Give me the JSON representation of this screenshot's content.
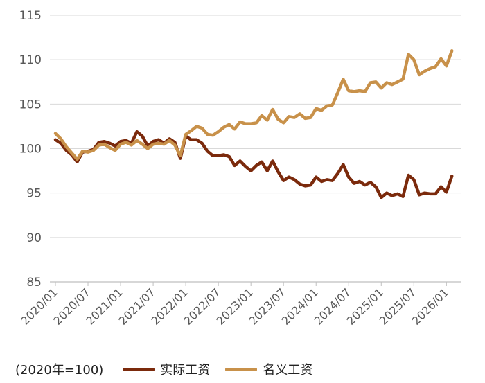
{
  "chart_data": {
    "type": "line",
    "ylim": [
      85,
      115
    ],
    "yticks": [
      85,
      90,
      95,
      100,
      105,
      110,
      115
    ],
    "x_start": "2020/01",
    "x": [
      "2020/01",
      "2020/02",
      "2020/03",
      "2020/04",
      "2020/05",
      "2020/06",
      "2020/07",
      "2020/08",
      "2020/09",
      "2020/10",
      "2020/11",
      "2020/12",
      "2021/01",
      "2021/02",
      "2021/03",
      "2021/04",
      "2021/05",
      "2021/06",
      "2021/07",
      "2021/08",
      "2021/09",
      "2021/10",
      "2021/11",
      "2021/12",
      "2022/01",
      "2022/02",
      "2022/03",
      "2022/04",
      "2022/05",
      "2022/06",
      "2022/07",
      "2022/08",
      "2022/09",
      "2022/10",
      "2022/11",
      "2022/12",
      "2023/01",
      "2023/02",
      "2023/03",
      "2023/04",
      "2023/05",
      "2023/06",
      "2023/07",
      "2023/08",
      "2023/09",
      "2023/10",
      "2023/11",
      "2023/12",
      "2024/01",
      "2024/02",
      "2024/03",
      "2024/04",
      "2024/05",
      "2024/06",
      "2024/07",
      "2024/08",
      "2024/09",
      "2024/10",
      "2024/11",
      "2024/12",
      "2025/01",
      "2025/02",
      "2025/03",
      "2025/04",
      "2025/05",
      "2025/06",
      "2025/07",
      "2025/08",
      "2025/09",
      "2025/10",
      "2025/11",
      "2025/12",
      "2026/01",
      "2026/02",
      "2026/03"
    ],
    "xticks": [
      "2020/01",
      "2020/07",
      "2021/01",
      "2021/07",
      "2022/01",
      "2022/07",
      "2023/01",
      "2023/07",
      "2024/01",
      "2024/07",
      "2025/01",
      "2025/07",
      "2026/01"
    ],
    "series": [
      {
        "name": "实际工资",
        "color": "#7B2A0C",
        "values": [
          101.0,
          100.6,
          99.8,
          99.3,
          98.5,
          99.6,
          99.7,
          99.9,
          100.7,
          100.8,
          100.6,
          100.3,
          100.8,
          100.9,
          100.6,
          101.9,
          101.4,
          100.3,
          100.8,
          101.0,
          100.6,
          101.1,
          100.7,
          98.9,
          101.4,
          101.0,
          101.0,
          100.6,
          99.7,
          99.2,
          99.2,
          99.3,
          99.1,
          98.1,
          98.6,
          98.0,
          97.5,
          98.1,
          98.5,
          97.5,
          98.6,
          97.4,
          96.4,
          96.8,
          96.5,
          96.0,
          95.8,
          95.9,
          96.8,
          96.3,
          96.5,
          96.4,
          97.2,
          98.2,
          96.8,
          96.1,
          96.3,
          95.9,
          96.2,
          95.7,
          94.5,
          95.0,
          94.7,
          94.9,
          94.6,
          97.0,
          96.5,
          94.8,
          95.0,
          94.9,
          94.9,
          95.7,
          95.1,
          96.9,
          null
        ]
      },
      {
        "name": "名义工资",
        "color": "#C8914A",
        "values": [
          101.7,
          101.1,
          100.2,
          99.5,
          98.8,
          99.7,
          99.6,
          99.8,
          100.4,
          100.5,
          100.1,
          99.8,
          100.5,
          100.7,
          100.4,
          100.9,
          100.5,
          100.0,
          100.5,
          100.6,
          100.5,
          100.9,
          100.4,
          99.2,
          101.6,
          102.0,
          102.5,
          102.3,
          101.6,
          101.5,
          101.9,
          102.4,
          102.7,
          102.2,
          103.0,
          102.8,
          102.8,
          102.9,
          103.7,
          103.2,
          104.4,
          103.3,
          102.9,
          103.6,
          103.5,
          103.9,
          103.4,
          103.5,
          104.5,
          104.3,
          104.8,
          104.9,
          106.3,
          107.8,
          106.5,
          106.4,
          106.5,
          106.4,
          107.4,
          107.5,
          106.8,
          107.4,
          107.2,
          107.5,
          107.8,
          110.6,
          110.0,
          108.3,
          108.7,
          109.0,
          109.2,
          110.1,
          109.3,
          111.0,
          null
        ]
      }
    ]
  },
  "legend": {
    "unit_label": "(2020年=100)",
    "items": [
      "实际工资",
      "名义工资"
    ]
  }
}
